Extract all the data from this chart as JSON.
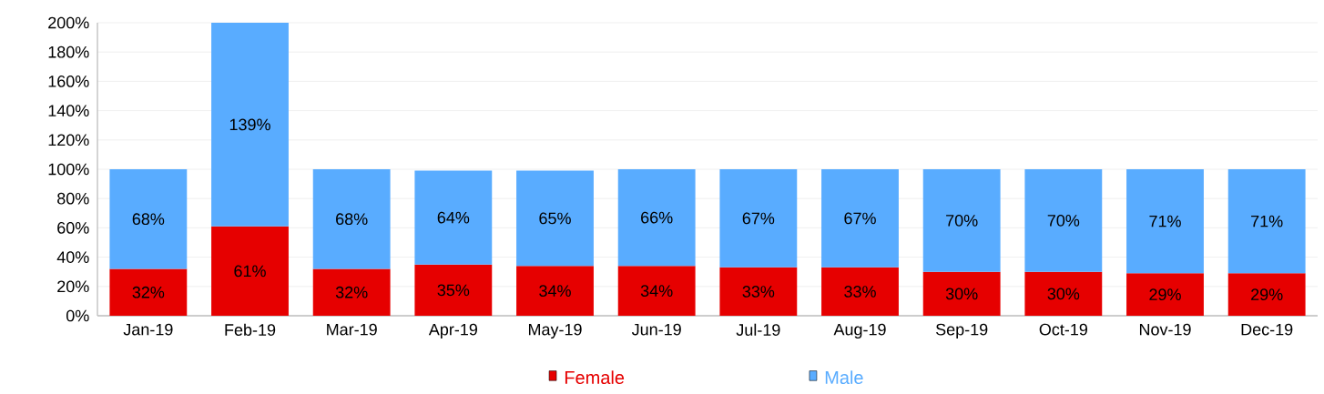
{
  "chart_data": {
    "type": "bar",
    "stacked": true,
    "categories": [
      "Jan-19",
      "Feb-19",
      "Mar-19",
      "Apr-19",
      "May-19",
      "Jun-19",
      "Jul-19",
      "Aug-19",
      "Sep-19",
      "Oct-19",
      "Nov-19",
      "Dec-19"
    ],
    "series": [
      {
        "name": "Female",
        "color": "#e60000",
        "values": [
          32,
          61,
          32,
          35,
          34,
          34,
          33,
          33,
          30,
          30,
          29,
          29
        ],
        "value_labels": [
          "32%",
          "61%",
          "32%",
          "35%",
          "34%",
          "34%",
          "33%",
          "33%",
          "30%",
          "30%",
          "29%",
          "29%"
        ]
      },
      {
        "name": "Male",
        "color": "#59acff",
        "values": [
          68,
          139,
          68,
          64,
          65,
          66,
          67,
          67,
          70,
          70,
          71,
          71
        ],
        "value_labels": [
          "68%",
          "139%",
          "68%",
          "64%",
          "65%",
          "66%",
          "67%",
          "67%",
          "70%",
          "70%",
          "71%",
          "71%"
        ]
      }
    ],
    "ylim": [
      0,
      200
    ],
    "yticks": [
      {
        "value": 0,
        "label": "0%"
      },
      {
        "value": 20,
        "label": "20%"
      },
      {
        "value": 40,
        "label": "40%"
      },
      {
        "value": 60,
        "label": "60%"
      },
      {
        "value": 80,
        "label": "80%"
      },
      {
        "value": 100,
        "label": "100%"
      },
      {
        "value": 120,
        "label": "120%"
      },
      {
        "value": 140,
        "label": "140%"
      },
      {
        "value": 160,
        "label": "160%"
      },
      {
        "value": 180,
        "label": "180%"
      },
      {
        "value": 200,
        "label": "200%"
      }
    ],
    "grid": "y",
    "legend": "bottom"
  }
}
